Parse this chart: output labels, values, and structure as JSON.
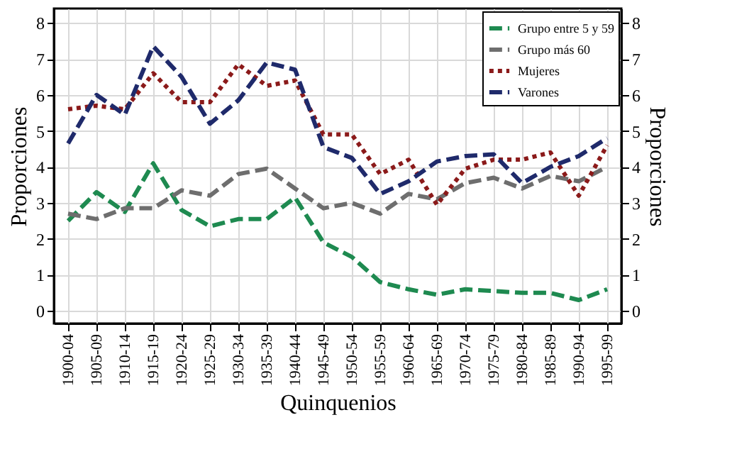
{
  "chart_data": {
    "type": "line",
    "xlabel": "Quinquenios",
    "ylabel": "Proporciones",
    "y2label": "Proporciones",
    "categories": [
      "1900-04",
      "1905-09",
      "1910-14",
      "1915-19",
      "1920-24",
      "1925-29",
      "1930-34",
      "1935-39",
      "1940-44",
      "1945-49",
      "1950-54",
      "1955-59",
      "1960-64",
      "1965-69",
      "1970-74",
      "1975-79",
      "1980-84",
      "1985-89",
      "1990-94",
      "1995-99"
    ],
    "series": [
      {
        "name": "Grupo entre 5 y 59",
        "color": "#1e8a50",
        "line_style": "dashed",
        "values": [
          2.5,
          3.3,
          2.75,
          4.1,
          2.8,
          2.35,
          2.55,
          2.55,
          3.15,
          1.9,
          1.5,
          0.8,
          0.6,
          0.45,
          0.6,
          0.55,
          0.5,
          0.5,
          0.3,
          0.6
        ]
      },
      {
        "name": "Grupo más 60",
        "color": "#6e6e6e",
        "line_style": "dashed",
        "values": [
          2.7,
          2.55,
          2.85,
          2.85,
          3.35,
          3.2,
          3.8,
          3.95,
          3.4,
          2.85,
          3.0,
          2.7,
          3.25,
          3.1,
          3.55,
          3.7,
          3.4,
          3.75,
          3.6,
          4.0
        ]
      },
      {
        "name": "Mujeres",
        "color": "#8b1a1a",
        "line_style": "dotted",
        "values": [
          5.6,
          5.7,
          5.6,
          6.6,
          5.8,
          5.8,
          6.85,
          6.25,
          6.4,
          4.9,
          4.9,
          3.8,
          4.2,
          2.95,
          3.95,
          4.2,
          4.2,
          4.4,
          3.2,
          4.6
        ]
      },
      {
        "name": "Varones",
        "color": "#1f2a6b",
        "line_style": "dashed",
        "values": [
          4.65,
          6.0,
          5.45,
          7.35,
          6.5,
          5.2,
          5.85,
          6.9,
          6.7,
          4.55,
          4.25,
          3.25,
          3.6,
          4.15,
          4.3,
          4.35,
          3.55,
          4.0,
          4.3,
          4.8
        ]
      }
    ],
    "ylim": [
      -0.35,
      8.4
    ],
    "yticks": [
      0,
      1,
      2,
      3,
      4,
      5,
      6,
      7,
      8
    ],
    "y2lim": [
      -0.35,
      8.4
    ],
    "y2ticks": [
      0,
      1,
      2,
      3,
      4,
      5,
      6,
      7,
      8
    ],
    "grid": true,
    "legend": "top right"
  }
}
